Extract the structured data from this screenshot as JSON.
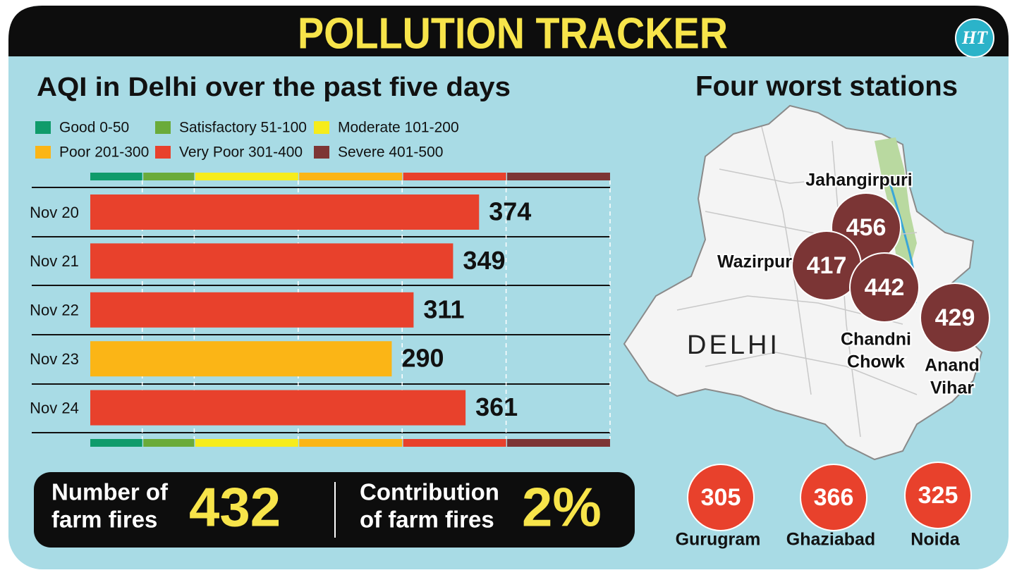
{
  "header": {
    "title": "POLLUTION TRACKER",
    "logo": "HT"
  },
  "chart_data": {
    "type": "bar",
    "orientation": "horizontal",
    "title": "AQI in Delhi over the past five days",
    "categories": [
      "Nov 20",
      "Nov 21",
      "Nov 22",
      "Nov 23",
      "Nov 24"
    ],
    "values": [
      374,
      349,
      311,
      290,
      361
    ],
    "colors": [
      "#e8412c",
      "#e8412c",
      "#e8412c",
      "#fbb516",
      "#e8412c"
    ],
    "xlim": [
      0,
      500
    ],
    "bands": [
      {
        "label": "Good 0-50",
        "from": 0,
        "to": 50,
        "color": "#0f9b6b"
      },
      {
        "label": "Satisfactory 51-100",
        "from": 51,
        "to": 100,
        "color": "#6aab3a"
      },
      {
        "label": "Moderate 101-200",
        "from": 101,
        "to": 200,
        "color": "#f6ec1c"
      },
      {
        "label": "Poor 201-300",
        "from": 201,
        "to": 300,
        "color": "#fbb516"
      },
      {
        "label": "Very Poor 301-400",
        "from": 301,
        "to": 400,
        "color": "#e8412c"
      },
      {
        "label": "Severe 401-500",
        "from": 401,
        "to": 500,
        "color": "#7d3535"
      }
    ]
  },
  "summary": [
    {
      "label": [
        "Number of",
        "farm fires"
      ],
      "value": 432
    },
    {
      "label": [
        "Contribution",
        "of farm fires"
      ],
      "value": "2%"
    }
  ],
  "stations": {
    "title": "Four worst stations",
    "map_label": "DELHI",
    "worst": [
      {
        "name": [
          "Jahangirpuri"
        ],
        "value": 456,
        "color": "#7b3535"
      },
      {
        "name": [
          "Wazirpur"
        ],
        "value": 417,
        "color": "#7b3535"
      },
      {
        "name": [
          "Chandni",
          "Chowk"
        ],
        "value": 442,
        "color": "#7b3535"
      },
      {
        "name": [
          "Anand",
          "Vihar"
        ],
        "value": 429,
        "color": "#7b3535"
      }
    ],
    "nearby": [
      {
        "name": "Gurugram",
        "value": 305,
        "color": "#e8412c"
      },
      {
        "name": "Ghaziabad",
        "value": 366,
        "color": "#e8412c"
      },
      {
        "name": "Noida",
        "value": 325,
        "color": "#e8412c"
      }
    ]
  }
}
